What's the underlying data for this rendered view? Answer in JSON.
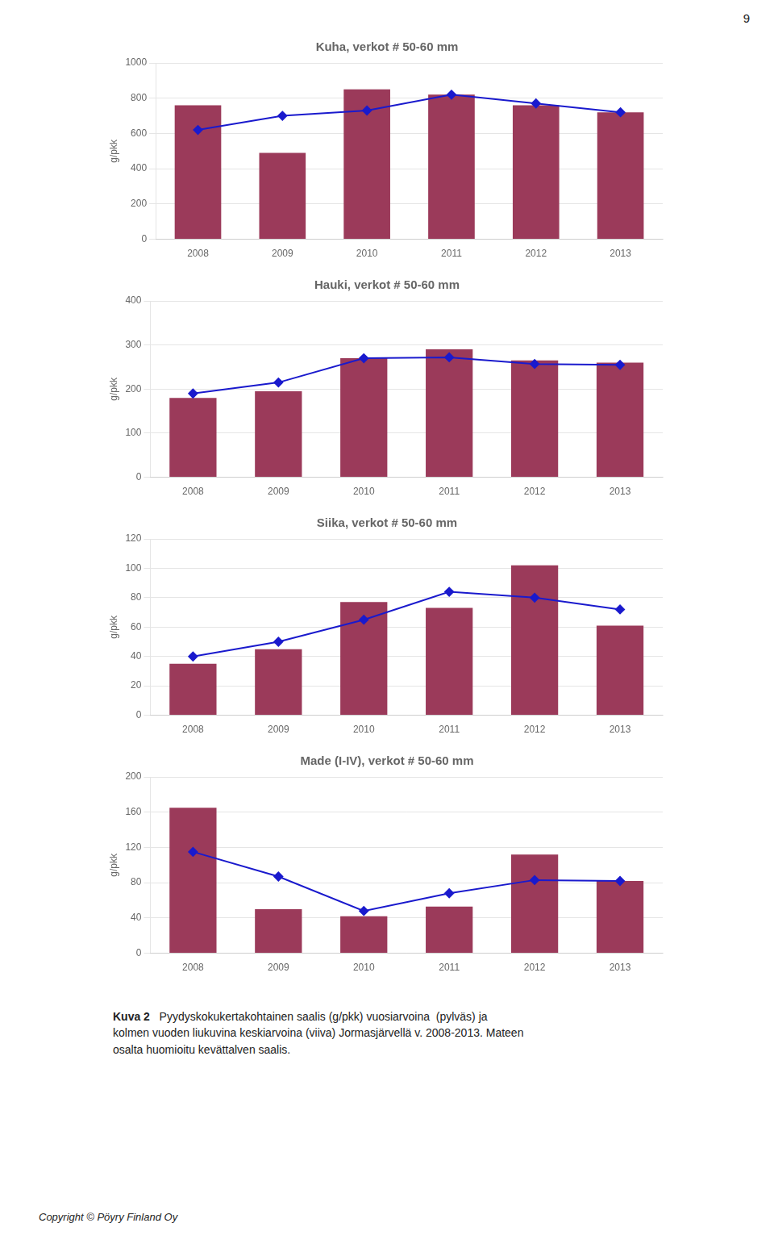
{
  "chart_data": [
    {
      "type": "bar",
      "title": "Kuha, verkot # 50-60 mm",
      "ylabel": "g/pkk",
      "categories": [
        "2008",
        "2009",
        "2010",
        "2011",
        "2012",
        "2013"
      ],
      "series": [
        {
          "type": "bar",
          "color": "#9B3A5A",
          "values": [
            760,
            490,
            850,
            820,
            760,
            720
          ]
        },
        {
          "type": "line",
          "color": "#1a1acd",
          "marker": "diamond",
          "values": [
            620,
            700,
            730,
            820,
            770,
            720
          ]
        }
      ],
      "ylim": [
        0,
        1000
      ],
      "yticks": [
        0,
        200,
        400,
        600,
        800,
        1000
      ],
      "grid": true
    },
    {
      "type": "bar",
      "title": "Hauki, verkot # 50-60 mm",
      "ylabel": "g/pkk",
      "categories": [
        "2008",
        "2009",
        "2010",
        "2011",
        "2012",
        "2013"
      ],
      "series": [
        {
          "type": "bar",
          "color": "#9B3A5A",
          "values": [
            180,
            195,
            270,
            290,
            265,
            260
          ]
        },
        {
          "type": "line",
          "color": "#1a1acd",
          "marker": "diamond",
          "values": [
            190,
            215,
            270,
            272,
            257,
            255
          ]
        }
      ],
      "ylim": [
        0,
        400
      ],
      "yticks": [
        0,
        100,
        200,
        300,
        400
      ],
      "grid": true
    },
    {
      "type": "bar",
      "title": "Siika, verkot # 50-60 mm",
      "ylabel": "g/pkk",
      "categories": [
        "2008",
        "2009",
        "2010",
        "2011",
        "2012",
        "2013"
      ],
      "series": [
        {
          "type": "bar",
          "color": "#9B3A5A",
          "values": [
            35,
            45,
            77,
            73,
            102,
            61
          ]
        },
        {
          "type": "line",
          "color": "#1a1acd",
          "marker": "diamond",
          "values": [
            40,
            50,
            65,
            84,
            80,
            72
          ]
        }
      ],
      "ylim": [
        0,
        120
      ],
      "yticks": [
        0,
        20,
        40,
        60,
        80,
        100,
        120
      ],
      "grid": true
    },
    {
      "type": "bar",
      "title": "Made (I-IV), verkot # 50-60 mm",
      "ylabel": "g/pkk",
      "categories": [
        "2008",
        "2009",
        "2010",
        "2011",
        "2012",
        "2013"
      ],
      "series": [
        {
          "type": "bar",
          "color": "#9B3A5A",
          "values": [
            165,
            50,
            42,
            53,
            112,
            82
          ]
        },
        {
          "type": "line",
          "color": "#1a1acd",
          "marker": "diamond",
          "values": [
            115,
            87,
            48,
            68,
            83,
            82
          ]
        }
      ],
      "ylim": [
        0,
        200
      ],
      "yticks": [
        0,
        40,
        80,
        120,
        160,
        200
      ],
      "grid": true
    }
  ],
  "page_number": "9",
  "caption_bold": "Kuva 2",
  "caption": "Pyydyskokukertakohtainen saalis (g/pkk) vuosiarvoina  (pylväs) ja\nkolmen vuoden liukuvina keskiarvoina (viiva) Jormasjärvellä v. 2008-2013. Mateen\nosalta huomioitu kevättalven saalis.",
  "copyright": "Copyright © Pöyry Finland Oy"
}
